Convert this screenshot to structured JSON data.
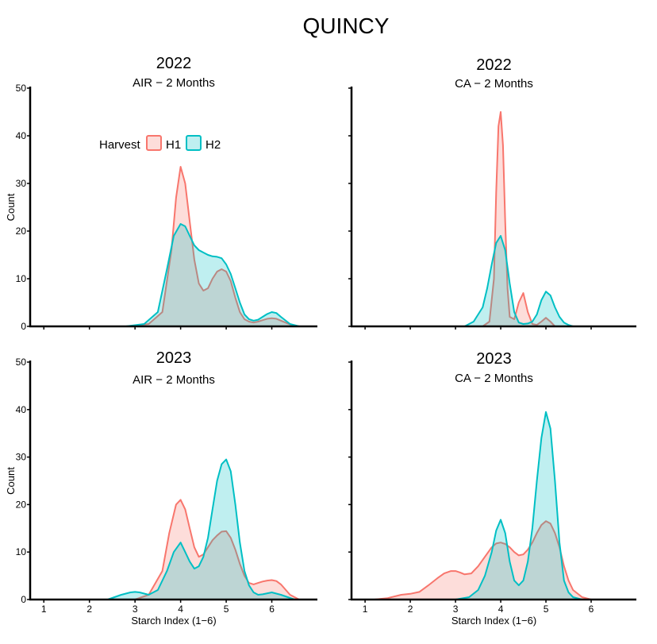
{
  "figure": {
    "title": "QUINCY",
    "colors": {
      "H1": "#F8766D",
      "H2": "#00BFC4",
      "axis": "#000000"
    }
  },
  "legend": {
    "title": "Harvest",
    "items": [
      "H1",
      "H2"
    ]
  },
  "chart_data": [
    {
      "type": "area",
      "title": "2022",
      "subtitle": "AIR − 2 Months",
      "xlabel": "",
      "ylabel": "Count",
      "xlim": [
        0.7,
        7.0
      ],
      "ylim": [
        0,
        50
      ],
      "xticks": [
        "1",
        "2",
        "3",
        "4",
        "5",
        "6"
      ],
      "yticks": [
        "0",
        "10",
        "20",
        "30",
        "40",
        "50"
      ],
      "show_xtick_labels": false,
      "legend": "top-left",
      "series": [
        {
          "name": "H1",
          "color": "#F8766D",
          "x": [
            2.9,
            3.3,
            3.6,
            3.8,
            3.9,
            4.0,
            4.1,
            4.2,
            4.3,
            4.4,
            4.5,
            4.6,
            4.7,
            4.8,
            4.9,
            5.0,
            5.1,
            5.2,
            5.3,
            5.4,
            5.5,
            5.6,
            5.7,
            5.8,
            5.9,
            6.0,
            6.1,
            6.2,
            6.4,
            6.6
          ],
          "y": [
            0,
            0.5,
            3,
            16,
            27,
            33.5,
            30,
            22,
            14,
            9,
            7.5,
            8,
            10,
            11.5,
            12,
            11.5,
            9.5,
            6,
            3,
            1.5,
            1,
            0.8,
            1,
            1.3,
            1.6,
            1.7,
            1.6,
            1.2,
            0.4,
            0
          ]
        },
        {
          "name": "H2",
          "color": "#00BFC4",
          "x": [
            2.8,
            3.2,
            3.5,
            3.7,
            3.85,
            4.0,
            4.1,
            4.2,
            4.3,
            4.4,
            4.5,
            4.6,
            4.7,
            4.8,
            4.9,
            5.0,
            5.1,
            5.2,
            5.3,
            5.4,
            5.5,
            5.6,
            5.7,
            5.8,
            5.9,
            6.0,
            6.1,
            6.2,
            6.4,
            6.6
          ],
          "y": [
            0,
            0.5,
            3,
            12,
            19,
            21.5,
            21,
            19,
            17,
            16,
            15.5,
            15,
            14.7,
            14.6,
            14.3,
            13,
            11,
            8,
            5,
            2.5,
            1.5,
            1.2,
            1.4,
            2,
            2.6,
            3,
            2.8,
            2,
            0.5,
            0
          ]
        }
      ]
    },
    {
      "type": "area",
      "title": "2022",
      "subtitle": "CA − 2 Months",
      "xlabel": "",
      "ylabel": "",
      "xlim": [
        0.7,
        7.0
      ],
      "ylim": [
        0,
        50
      ],
      "xticks": [
        "1",
        "2",
        "3",
        "4",
        "5",
        "6"
      ],
      "yticks": [
        "0",
        "10",
        "20",
        "30",
        "40",
        "50"
      ],
      "show_xtick_labels": false,
      "show_ytick_labels": false,
      "series": [
        {
          "name": "H1",
          "color": "#F8766D",
          "x": [
            3.6,
            3.75,
            3.85,
            3.9,
            3.95,
            4.0,
            4.05,
            4.1,
            4.15,
            4.2,
            4.3,
            4.4,
            4.5,
            4.6,
            4.7,
            4.8,
            4.9,
            5.0,
            5.1,
            5.2
          ],
          "y": [
            0,
            1,
            10,
            28,
            42,
            45,
            38,
            22,
            8,
            2,
            1.5,
            5,
            7,
            3,
            0.5,
            0.3,
            1,
            1.8,
            1,
            0
          ]
        },
        {
          "name": "H2",
          "color": "#00BFC4",
          "x": [
            3.2,
            3.4,
            3.6,
            3.7,
            3.8,
            3.9,
            4.0,
            4.1,
            4.2,
            4.3,
            4.4,
            4.5,
            4.6,
            4.7,
            4.8,
            4.9,
            5.0,
            5.1,
            5.2,
            5.3,
            5.4,
            5.5,
            5.6
          ],
          "y": [
            0,
            1,
            4,
            8,
            13,
            17.5,
            19,
            16,
            9,
            3,
            0.8,
            0.5,
            0.6,
            1,
            2.5,
            5.5,
            7.3,
            6.5,
            4,
            2,
            0.8,
            0.3,
            0
          ]
        }
      ]
    },
    {
      "type": "area",
      "title": "2023",
      "subtitle": "AIR − 2 Months",
      "xlabel": "Starch Index (1−6)",
      "ylabel": "Count",
      "xlim": [
        0.7,
        7.0
      ],
      "ylim": [
        0,
        50
      ],
      "xticks": [
        "1",
        "2",
        "3",
        "4",
        "5",
        "6"
      ],
      "yticks": [
        "0",
        "10",
        "20",
        "30",
        "40",
        "50"
      ],
      "show_xtick_labels": true,
      "series": [
        {
          "name": "H1",
          "color": "#F8766D",
          "x": [
            3.0,
            3.3,
            3.6,
            3.75,
            3.9,
            4.0,
            4.1,
            4.2,
            4.3,
            4.4,
            4.5,
            4.6,
            4.7,
            4.8,
            4.9,
            5.0,
            5.1,
            5.2,
            5.3,
            5.4,
            5.5,
            5.6,
            5.7,
            5.8,
            5.9,
            6.0,
            6.1,
            6.2,
            6.4,
            6.6
          ],
          "y": [
            0,
            1,
            6,
            14,
            20,
            21,
            19,
            15,
            11,
            9,
            9.5,
            11,
            12.5,
            13.5,
            14.3,
            14.4,
            13,
            10.5,
            7.5,
            5,
            3.5,
            3.2,
            3.5,
            3.8,
            4,
            4.1,
            3.9,
            3.2,
            1,
            0
          ]
        },
        {
          "name": "H2",
          "color": "#00BFC4",
          "x": [
            2.4,
            2.7,
            2.9,
            3.0,
            3.1,
            3.3,
            3.5,
            3.7,
            3.85,
            4.0,
            4.1,
            4.2,
            4.3,
            4.4,
            4.5,
            4.6,
            4.7,
            4.8,
            4.9,
            5.0,
            5.1,
            5.2,
            5.3,
            5.4,
            5.5,
            5.6,
            5.7,
            5.8,
            6.0,
            6.2,
            6.5
          ],
          "y": [
            0,
            1,
            1.5,
            1.6,
            1.5,
            1,
            2,
            6,
            10,
            12,
            10,
            8,
            6.5,
            7,
            9,
            13,
            19,
            25,
            28.5,
            29.5,
            27,
            20,
            12,
            6,
            3,
            1.5,
            1,
            1.1,
            1.5,
            1,
            0
          ]
        }
      ]
    },
    {
      "type": "area",
      "title": "2023",
      "subtitle": "CA − 2 Months",
      "xlabel": "Starch Index (1−6)",
      "ylabel": "",
      "xlim": [
        0.7,
        7.0
      ],
      "ylim": [
        0,
        50
      ],
      "xticks": [
        "1",
        "2",
        "3",
        "4",
        "5",
        "6"
      ],
      "yticks": [
        "0",
        "10",
        "20",
        "30",
        "40",
        "50"
      ],
      "show_xtick_labels": true,
      "show_ytick_labels": false,
      "series": [
        {
          "name": "H1",
          "color": "#F8766D",
          "x": [
            1.2,
            1.5,
            1.8,
            2.0,
            2.2,
            2.4,
            2.6,
            2.75,
            2.9,
            3.0,
            3.1,
            3.2,
            3.35,
            3.5,
            3.65,
            3.8,
            3.9,
            4.0,
            4.1,
            4.2,
            4.3,
            4.4,
            4.5,
            4.6,
            4.7,
            4.8,
            4.9,
            5.0,
            5.1,
            5.2,
            5.3,
            5.4,
            5.5,
            5.6,
            5.8,
            6.0
          ],
          "y": [
            0,
            0.3,
            1,
            1.2,
            1.6,
            3,
            4.5,
            5.5,
            6,
            6,
            5.7,
            5.3,
            5.5,
            7,
            9,
            11,
            11.8,
            12,
            11.7,
            11,
            10,
            9.3,
            9.5,
            10.5,
            12,
            14,
            15.7,
            16.5,
            16,
            14,
            11,
            7,
            4,
            2,
            0.5,
            0
          ]
        },
        {
          "name": "H2",
          "color": "#00BFC4",
          "x": [
            3.0,
            3.3,
            3.5,
            3.65,
            3.8,
            3.9,
            4.0,
            4.1,
            4.2,
            4.3,
            4.4,
            4.5,
            4.6,
            4.7,
            4.8,
            4.9,
            5.0,
            5.1,
            5.2,
            5.3,
            5.4,
            5.5,
            5.6,
            5.8
          ],
          "y": [
            0,
            0.5,
            2,
            5,
            10,
            14.5,
            16.8,
            14,
            8,
            4,
            3,
            4,
            8,
            15,
            25,
            34,
            39.5,
            36,
            25,
            12,
            4,
            1.5,
            0.5,
            0
          ]
        }
      ]
    }
  ]
}
